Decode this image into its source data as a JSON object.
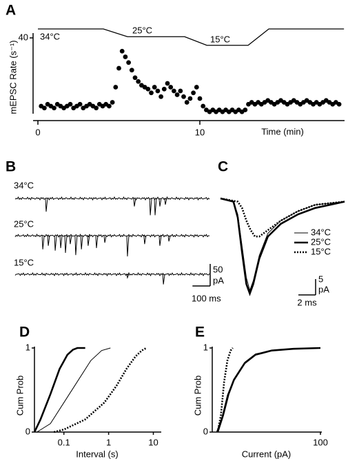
{
  "chart_data": [
    {
      "type": "scatter",
      "panel": "A",
      "y_label": "mEPSC Rate (s⁻¹)",
      "x_label": "Time (min)",
      "xlim": [
        0,
        19
      ],
      "ylim": [
        0,
        40
      ],
      "xticks": [
        0,
        10
      ],
      "yticks": [
        40
      ],
      "color": "#000000",
      "x": [
        0.2,
        0.4,
        0.6,
        0.8,
        1.0,
        1.2,
        1.4,
        1.6,
        1.8,
        2.0,
        2.2,
        2.4,
        2.6,
        2.8,
        3.0,
        3.2,
        3.4,
        3.6,
        3.8,
        4.0,
        4.2,
        4.4,
        4.6,
        4.8,
        5.0,
        5.2,
        5.4,
        5.6,
        5.8,
        6.0,
        6.2,
        6.4,
        6.6,
        6.8,
        7.0,
        7.2,
        7.4,
        7.6,
        7.8,
        8.0,
        8.2,
        8.4,
        8.6,
        8.8,
        9.0,
        9.2,
        9.4,
        9.6,
        9.8,
        10.0,
        10.2,
        10.4,
        10.6,
        10.8,
        11.0,
        11.2,
        11.4,
        11.6,
        11.8,
        12.0,
        12.2,
        12.4,
        12.6,
        12.8,
        13.0,
        13.2,
        13.4,
        13.6,
        13.8,
        14.0,
        14.2,
        14.4,
        14.6,
        14.8,
        15.0,
        15.2,
        15.4,
        15.6,
        15.8,
        16.0,
        16.2,
        16.4,
        16.6,
        16.8,
        17.0,
        17.2,
        17.4,
        17.6,
        17.8,
        18.0,
        18.2,
        18.4,
        18.6
      ],
      "values": [
        4,
        3,
        5,
        4,
        3,
        5,
        4,
        3,
        4,
        5,
        3,
        4,
        5,
        3,
        4,
        5,
        4,
        3,
        5,
        4,
        5,
        4,
        6,
        14,
        24,
        33,
        30,
        27,
        23,
        19,
        17,
        15,
        14,
        13,
        11,
        14,
        12,
        9,
        13,
        16,
        14,
        12,
        10,
        12,
        9,
        6,
        8,
        11,
        14,
        8,
        4,
        2,
        1,
        2,
        1,
        2,
        1,
        2,
        1,
        2,
        1,
        2,
        1,
        2,
        5,
        6,
        5,
        6,
        5,
        6,
        7,
        6,
        5,
        6,
        7,
        6,
        5,
        6,
        7,
        6,
        5,
        6,
        7,
        6,
        5,
        6,
        5,
        6,
        7,
        6,
        5,
        6,
        5
      ],
      "temperature": {
        "x": [
          0,
          4.04,
          5.53,
          9.06,
          10.43,
          12.98,
          14.26,
          18.9
        ],
        "values": [
          34,
          34,
          25,
          25,
          15,
          15,
          34,
          34
        ]
      },
      "temp_labels": [
        "34°C",
        "25°C",
        "15°C"
      ]
    },
    {
      "type": "trace",
      "panel": "B",
      "series": [
        {
          "name": "34°C",
          "t": [
            175,
            673,
            763,
            790,
            817,
            848
          ],
          "amp": [
            30,
            18,
            38,
            38,
            18,
            14
          ]
        },
        {
          "name": "25°C",
          "t": [
            156,
            187,
            226,
            257,
            284,
            311,
            342,
            374,
            412,
            459,
            506,
            634,
            731,
            817,
            868
          ],
          "amp": [
            31,
            23,
            34,
            28,
            39,
            19,
            44,
            31,
            23,
            28,
            16,
            47,
            19,
            23,
            13
          ]
        },
        {
          "name": "15°C",
          "t": [
            634,
            837
          ],
          "amp": [
            8,
            23
          ]
        }
      ],
      "scale_y": 50,
      "scale_y_unit": "pA",
      "scale_x": {
        "value": 100,
        "label": "100 ms"
      }
    },
    {
      "type": "line",
      "panel": "C",
      "series": [
        {
          "name": "34°C",
          "style": "thin",
          "x": [
            0,
            1.5,
            2,
            2.5,
            3,
            3.4,
            3.8,
            4.5,
            5.5,
            7,
            9,
            11,
            14.4
          ],
          "values": [
            0,
            -1,
            -5,
            -15,
            -25,
            -29,
            -26,
            -18,
            -11,
            -7,
            -4,
            -2,
            -1
          ]
        },
        {
          "name": "25°C",
          "style": "thick",
          "x": [
            0,
            1.5,
            2,
            2.5,
            3,
            3.4,
            3.8,
            4.5,
            5.5,
            7,
            9,
            11,
            14.4
          ],
          "values": [
            0,
            -1,
            -6,
            -17,
            -27,
            -30,
            -27,
            -19,
            -12,
            -8,
            -5,
            -3,
            -1
          ]
        },
        {
          "name": "15°C",
          "style": "dotted",
          "x": [
            0,
            2,
            2.5,
            3,
            3.5,
            4,
            4.5,
            5,
            6,
            7,
            9,
            11,
            14.4
          ],
          "values": [
            0,
            -1,
            -3,
            -7,
            -10,
            -12,
            -12,
            -11,
            -9,
            -7,
            -4,
            -2,
            -1
          ]
        }
      ],
      "scale_y": 5,
      "scale_y_unit": "pA",
      "scale_x": {
        "value": 2,
        "label": "2 ms"
      }
    },
    {
      "type": "cdf",
      "panel": "D",
      "y_label": "Cum Prob",
      "x_label": "Interval (s)",
      "log_x": true,
      "xlim": [
        0.022,
        14
      ],
      "ylim": [
        0,
        1
      ],
      "xticks": [
        0.1,
        1,
        10
      ],
      "yticks": [
        0,
        1
      ],
      "series": [
        {
          "style": "thick",
          "x": [
            0.022,
            0.03,
            0.05,
            0.08,
            0.12,
            0.16,
            0.2,
            0.3
          ],
          "values": [
            0,
            0.15,
            0.45,
            0.75,
            0.92,
            0.98,
            1,
            1
          ]
        },
        {
          "style": "thin",
          "x": [
            0.025,
            0.05,
            0.1,
            0.2,
            0.4,
            0.7,
            1.1
          ],
          "values": [
            0,
            0.1,
            0.35,
            0.6,
            0.85,
            0.97,
            1
          ]
        },
        {
          "style": "dotted",
          "x": [
            0.06,
            0.1,
            0.3,
            0.8,
            1.5,
            2.5,
            4,
            5.5,
            7
          ],
          "values": [
            0,
            0.03,
            0.15,
            0.35,
            0.55,
            0.75,
            0.9,
            0.97,
            1
          ]
        }
      ]
    },
    {
      "type": "cdf",
      "panel": "E",
      "y_label": "Cum Prob",
      "x_label": "Current (pA)",
      "log_x": false,
      "xlim": [
        0,
        100
      ],
      "ylim": [
        0,
        1
      ],
      "xticks": [
        100
      ],
      "yticks": [
        0,
        1
      ],
      "series": [
        {
          "style": "thick",
          "x": [
            5,
            10,
            15,
            20,
            30,
            40,
            55,
            75,
            100
          ],
          "values": [
            0,
            0.2,
            0.45,
            0.62,
            0.82,
            0.92,
            0.97,
            0.99,
            1
          ]
        },
        {
          "style": "thin",
          "x": [
            4,
            9,
            14,
            20,
            30,
            40,
            55,
            75,
            100
          ],
          "values": [
            0,
            0.18,
            0.44,
            0.63,
            0.83,
            0.93,
            0.97,
            0.99,
            1
          ]
        },
        {
          "style": "dotted",
          "x": [
            5,
            8,
            11,
            14,
            17,
            19
          ],
          "values": [
            0,
            0.2,
            0.6,
            0.85,
            0.97,
            1
          ]
        }
      ]
    }
  ]
}
